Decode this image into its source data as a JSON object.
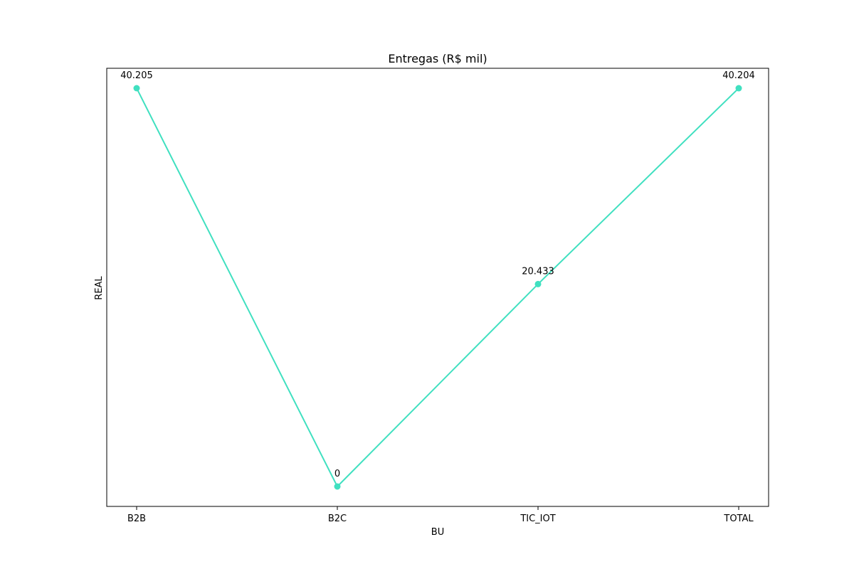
{
  "chart_data": {
    "type": "line",
    "title": "Entregas (R$ mil)",
    "xlabel": "BU",
    "ylabel": "REAL",
    "categories": [
      "B2B",
      "B2C",
      "TIC_IOT",
      "TOTAL"
    ],
    "series": [
      {
        "values": [
          40.205,
          0,
          20.433,
          40.204
        ],
        "data_labels": [
          "40.205",
          "0",
          "20.433",
          "40.204"
        ],
        "color": "#40e0c0"
      }
    ],
    "ylim": [
      -2.01,
      42.215
    ],
    "grid": false,
    "y_ticks_shown": false,
    "markers": "circle"
  }
}
